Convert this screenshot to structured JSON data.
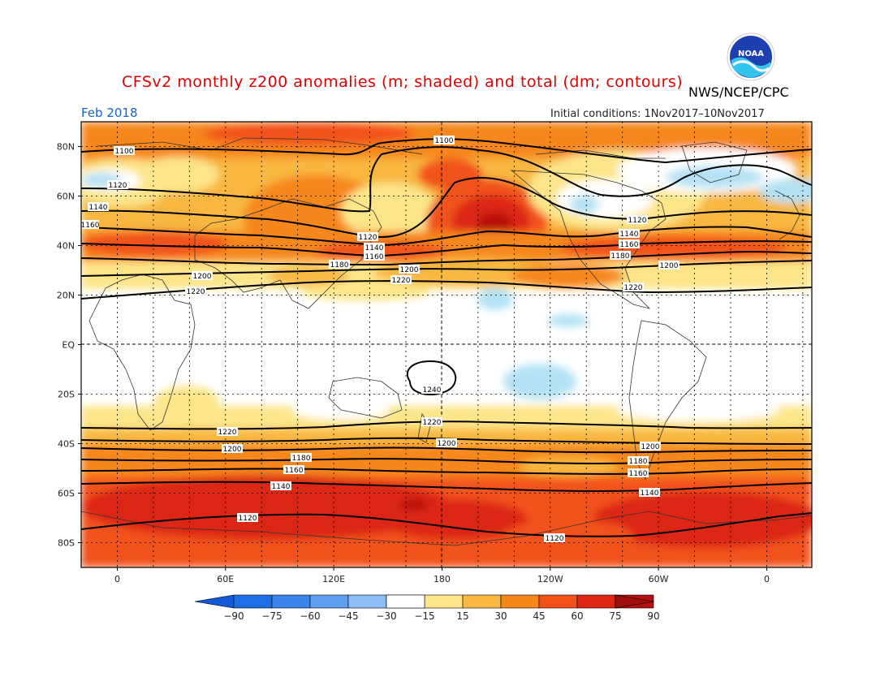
{
  "header": {
    "title": "CFSv2 monthly z200 anomalies (m; shaded) and total (dm; contours)",
    "agency": "NWS/NCEP/CPC",
    "valid_month": "Feb 2018",
    "initial_conditions": "Initial conditions: 1Nov2017–10Nov2017",
    "logo_text": "NOAA",
    "logo_icon": "noaa-logo-icon"
  },
  "map": {
    "lat_labels": [
      "80N",
      "60N",
      "40N",
      "20N",
      "EQ",
      "20S",
      "40S",
      "60S",
      "80S"
    ],
    "lon_labels": [
      "0",
      "60E",
      "120E",
      "180",
      "120W",
      "60W",
      "0"
    ],
    "lat_values": [
      80,
      60,
      40,
      20,
      0,
      -20,
      -40,
      -60,
      -80
    ],
    "lon_values": [
      0,
      60,
      120,
      180,
      240,
      300,
      360
    ],
    "lon_range": [
      -20,
      385
    ],
    "lat_range": [
      -90,
      90
    ],
    "contour_labels": {
      "c1100a": "1100",
      "c1100b": "1100",
      "c1120a": "1120",
      "c1120b": "1120",
      "c1120c": "1120",
      "c1120d": "1120",
      "c1120e": "1120",
      "c1140a": "1140",
      "c1140b": "1140",
      "c1140c": "1140",
      "c1140d": "1140",
      "c1140e": "1140",
      "c1160a": "1160",
      "c1160b": "1160",
      "c1160c": "1160",
      "c1160d": "1160",
      "c1160e": "1160",
      "c1160f": "1160",
      "c1180a": "1180",
      "c1180b": "1180",
      "c1180c": "1180",
      "c1180d": "1180",
      "c1200a": "1200",
      "c1200b": "1200",
      "c1200c": "1200",
      "c1200d": "1200",
      "c1200e": "1200",
      "c1200f": "1200",
      "c1220a": "1220",
      "c1220b": "1220",
      "c1220c": "1220",
      "c1220d": "1220",
      "c1220e": "1220",
      "c1240": "1240"
    }
  },
  "colorbar": {
    "labels": [
      "−90",
      "−75",
      "−60",
      "−45",
      "−30",
      "−15",
      "15",
      "30",
      "45",
      "60",
      "75",
      "90"
    ],
    "colors": [
      "#1e6fe6",
      "#3a85ea",
      "#5e9df0",
      "#8cbdf5",
      "#b4e2f4",
      "#ffffff",
      "#fde58a",
      "#f8b740",
      "#f6871a",
      "#f2521a",
      "#dc2813",
      "#b61010"
    ],
    "low_end_color": "#1259d8",
    "high_end_color": "#a00d0d"
  }
}
